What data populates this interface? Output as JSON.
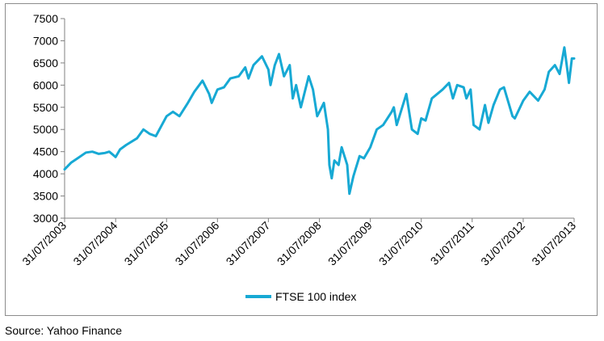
{
  "chart_data": {
    "type": "line",
    "title": "",
    "xlabel": "",
    "ylabel": "",
    "ylim": [
      3000,
      7500
    ],
    "yticks": [
      3000,
      3500,
      4000,
      4500,
      5000,
      5500,
      6000,
      6500,
      7000,
      7500
    ],
    "xticks": [
      "31/07/2003",
      "31/07/2004",
      "31/07/2005",
      "31/07/2006",
      "31/07/2007",
      "31/07/2008",
      "31/07/2009",
      "31/07/2010",
      "31/07/2011",
      "31/07/2012",
      "31/07/2013"
    ],
    "grid": false,
    "legend": "bottom-center",
    "series": [
      {
        "name": "FTSE 100 index",
        "color": "#17a9d4",
        "points": [
          [
            "2003-07-31",
            4100
          ],
          [
            "2003-09-15",
            4250
          ],
          [
            "2003-11-01",
            4350
          ],
          [
            "2003-12-31",
            4480
          ],
          [
            "2004-02-15",
            4500
          ],
          [
            "2004-04-01",
            4450
          ],
          [
            "2004-05-15",
            4470
          ],
          [
            "2004-06-15",
            4500
          ],
          [
            "2004-07-31",
            4380
          ],
          [
            "2004-09-01",
            4550
          ],
          [
            "2004-10-15",
            4650
          ],
          [
            "2004-12-31",
            4800
          ],
          [
            "2005-02-15",
            5000
          ],
          [
            "2005-04-01",
            4900
          ],
          [
            "2005-05-15",
            4850
          ],
          [
            "2005-07-31",
            5300
          ],
          [
            "2005-09-15",
            5400
          ],
          [
            "2005-10-31",
            5300
          ],
          [
            "2005-12-31",
            5600
          ],
          [
            "2006-02-15",
            5850
          ],
          [
            "2006-04-15",
            6100
          ],
          [
            "2006-06-01",
            5800
          ],
          [
            "2006-06-20",
            5600
          ],
          [
            "2006-07-31",
            5900
          ],
          [
            "2006-09-15",
            5950
          ],
          [
            "2006-10-31",
            6150
          ],
          [
            "2006-12-31",
            6200
          ],
          [
            "2007-02-15",
            6400
          ],
          [
            "2007-03-10",
            6150
          ],
          [
            "2007-04-15",
            6450
          ],
          [
            "2007-06-15",
            6650
          ],
          [
            "2007-07-31",
            6350
          ],
          [
            "2007-08-15",
            6000
          ],
          [
            "2007-09-15",
            6450
          ],
          [
            "2007-10-15",
            6700
          ],
          [
            "2007-11-20",
            6200
          ],
          [
            "2007-12-31",
            6450
          ],
          [
            "2008-01-22",
            5700
          ],
          [
            "2008-02-15",
            6000
          ],
          [
            "2008-03-20",
            5500
          ],
          [
            "2008-05-15",
            6200
          ],
          [
            "2008-06-15",
            5900
          ],
          [
            "2008-07-15",
            5300
          ],
          [
            "2008-07-31",
            5400
          ],
          [
            "2008-09-01",
            5600
          ],
          [
            "2008-09-30",
            5000
          ],
          [
            "2008-10-10",
            4200
          ],
          [
            "2008-10-27",
            3900
          ],
          [
            "2008-11-15",
            4300
          ],
          [
            "2008-12-15",
            4200
          ],
          [
            "2009-01-06",
            4600
          ],
          [
            "2009-02-15",
            4200
          ],
          [
            "2009-03-03",
            3550
          ],
          [
            "2009-04-01",
            3950
          ],
          [
            "2009-05-15",
            4400
          ],
          [
            "2009-06-15",
            4350
          ],
          [
            "2009-07-31",
            4600
          ],
          [
            "2009-09-15",
            5000
          ],
          [
            "2009-10-31",
            5100
          ],
          [
            "2009-12-31",
            5400
          ],
          [
            "2010-01-15",
            5500
          ],
          [
            "2010-02-05",
            5100
          ],
          [
            "2010-04-15",
            5800
          ],
          [
            "2010-05-25",
            5000
          ],
          [
            "2010-07-05",
            4900
          ],
          [
            "2010-07-31",
            5250
          ],
          [
            "2010-08-31",
            5200
          ],
          [
            "2010-10-15",
            5700
          ],
          [
            "2010-12-31",
            5900
          ],
          [
            "2011-02-15",
            6050
          ],
          [
            "2011-03-15",
            5700
          ],
          [
            "2011-04-15",
            6000
          ],
          [
            "2011-05-31",
            5950
          ],
          [
            "2011-06-20",
            5700
          ],
          [
            "2011-07-20",
            5900
          ],
          [
            "2011-08-10",
            5100
          ],
          [
            "2011-09-22",
            5000
          ],
          [
            "2011-10-31",
            5550
          ],
          [
            "2011-11-25",
            5150
          ],
          [
            "2011-12-31",
            5550
          ],
          [
            "2012-02-15",
            5900
          ],
          [
            "2012-03-15",
            5950
          ],
          [
            "2012-05-15",
            5300
          ],
          [
            "2012-06-01",
            5250
          ],
          [
            "2012-07-31",
            5650
          ],
          [
            "2012-09-15",
            5850
          ],
          [
            "2012-11-15",
            5650
          ],
          [
            "2012-12-31",
            5900
          ],
          [
            "2013-01-31",
            6300
          ],
          [
            "2013-03-15",
            6450
          ],
          [
            "2013-04-18",
            6250
          ],
          [
            "2013-05-22",
            6850
          ],
          [
            "2013-06-10",
            6400
          ],
          [
            "2013-06-24",
            6050
          ],
          [
            "2013-07-15",
            6600
          ],
          [
            "2013-07-31",
            6600
          ]
        ]
      }
    ]
  },
  "source_note": "Source: Yahoo Finance"
}
